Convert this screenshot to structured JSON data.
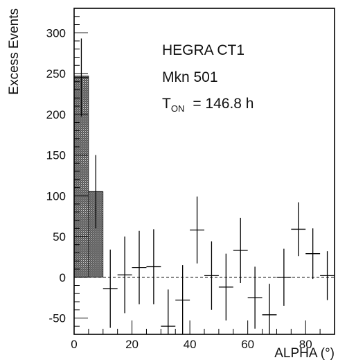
{
  "chart_data": {
    "type": "bar",
    "title": "",
    "xlabel": "ALPHA (°)",
    "ylabel": "Excess Events",
    "xlim": [
      0,
      90
    ],
    "ylim": [
      -70,
      330
    ],
    "xticks": [
      0,
      20,
      40,
      60,
      80
    ],
    "yticks": [
      -50,
      0,
      50,
      100,
      150,
      200,
      250,
      300
    ],
    "annotations": {
      "line1": "HEGRA CT1",
      "line2": "Mkn 501",
      "line3_main": "T",
      "line3_sub": "ON",
      "line3_rest": "= 146.8 h"
    },
    "grid": false,
    "reference_line": {
      "y": 0,
      "style": "dashed"
    },
    "shaded_bars": [
      {
        "x_from": 0,
        "x_to": 5,
        "value": 247
      },
      {
        "x_from": 5,
        "x_to": 10,
        "value": 105
      }
    ],
    "points": [
      {
        "x": 2.5,
        "y": 245,
        "err": 48
      },
      {
        "x": 7.5,
        "y": 105,
        "err": 45
      },
      {
        "x": 12.5,
        "y": -14,
        "err": 48
      },
      {
        "x": 17.5,
        "y": 3,
        "err": 47
      },
      {
        "x": 22.5,
        "y": 12,
        "err": 45
      },
      {
        "x": 27.5,
        "y": 13,
        "err": 46
      },
      {
        "x": 32.5,
        "y": -60,
        "err": 45
      },
      {
        "x": 37.5,
        "y": -28,
        "err": 43
      },
      {
        "x": 42.5,
        "y": 58,
        "err": 41
      },
      {
        "x": 47.5,
        "y": 2,
        "err": 42
      },
      {
        "x": 52.5,
        "y": -12,
        "err": 41
      },
      {
        "x": 57.5,
        "y": 33,
        "err": 40
      },
      {
        "x": 62.5,
        "y": -25,
        "err": 38
      },
      {
        "x": 67.5,
        "y": -46,
        "err": 38
      },
      {
        "x": 72.5,
        "y": 0,
        "err": 35
      },
      {
        "x": 77.5,
        "y": 59,
        "err": 33
      },
      {
        "x": 82.5,
        "y": 29,
        "err": 31
      },
      {
        "x": 87.5,
        "y": 2,
        "err": 30
      }
    ]
  }
}
